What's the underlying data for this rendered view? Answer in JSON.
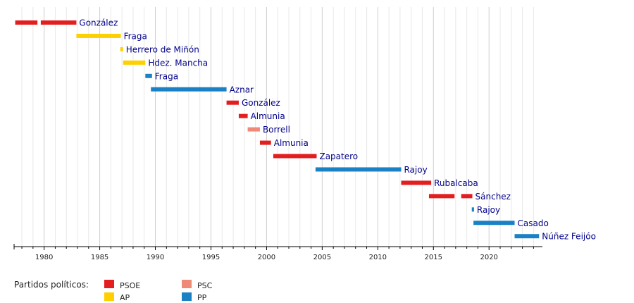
{
  "colors": {
    "PSOE": "#e21e1e",
    "AP": "#ffd000",
    "PSC": "#f08a78",
    "PP": "#1a82c4",
    "label": "#00008b",
    "grid": "#dddddd",
    "axis": "#000000"
  },
  "legend": {
    "title": "Partidos políticos:",
    "items": [
      {
        "party": "PSOE",
        "label": "PSOE"
      },
      {
        "party": "AP",
        "label": "AP"
      },
      {
        "party": "PSC",
        "label": "PSC"
      },
      {
        "party": "PP",
        "label": "PP"
      }
    ]
  },
  "chart_data": {
    "type": "bar",
    "orientation": "horizontal-timeline",
    "xlim": [
      1977.3,
      2024.8
    ],
    "x_ticks": [
      1980,
      1985,
      1990,
      1995,
      2000,
      2005,
      2010,
      2015,
      2020
    ],
    "grid": "vertical, every year",
    "rows": [
      {
        "label": "González",
        "party": "PSOE",
        "spans": [
          [
            1977.4,
            1979.4
          ],
          [
            1979.7,
            1982.9
          ]
        ]
      },
      {
        "label": "Fraga",
        "party": "AP",
        "spans": [
          [
            1982.9,
            1986.9
          ]
        ]
      },
      {
        "label": "Herrero de Miñón",
        "party": "AP",
        "spans": [
          [
            1986.85,
            1987.1
          ]
        ]
      },
      {
        "label": "Hdez. Mancha",
        "party": "AP",
        "spans": [
          [
            1987.1,
            1989.1
          ]
        ]
      },
      {
        "label": "Fraga",
        "party": "PP",
        "spans": [
          [
            1989.1,
            1989.7
          ]
        ]
      },
      {
        "label": "Aznar",
        "party": "PP",
        "spans": [
          [
            1989.6,
            1996.4
          ]
        ]
      },
      {
        "label": "González",
        "party": "PSOE",
        "spans": [
          [
            1996.4,
            1997.5
          ]
        ]
      },
      {
        "label": "Almunia",
        "party": "PSOE",
        "spans": [
          [
            1997.5,
            1998.3
          ]
        ]
      },
      {
        "label": "Borrell",
        "party": "PSC",
        "spans": [
          [
            1998.3,
            1999.4
          ]
        ]
      },
      {
        "label": "Almunia",
        "party": "PSOE",
        "spans": [
          [
            1999.4,
            2000.4
          ]
        ]
      },
      {
        "label": "Zapatero",
        "party": "PSOE",
        "spans": [
          [
            2000.6,
            2004.5
          ]
        ]
      },
      {
        "label": "Rajoy",
        "party": "PP",
        "spans": [
          [
            2004.4,
            2012.1
          ]
        ]
      },
      {
        "label": "Rubalcaba",
        "party": "PSOE",
        "spans": [
          [
            2012.1,
            2014.8
          ]
        ]
      },
      {
        "label": "Sánchez",
        "party": "PSOE",
        "spans": [
          [
            2014.6,
            2016.9
          ],
          [
            2017.5,
            2018.5
          ]
        ]
      },
      {
        "label": "Rajoy",
        "party": "PP",
        "spans": [
          [
            2018.45,
            2018.65
          ]
        ]
      },
      {
        "label": "Casado",
        "party": "PP",
        "spans": [
          [
            2018.6,
            2022.3
          ]
        ]
      },
      {
        "label": "Núñez Feijóo",
        "party": "PP",
        "spans": [
          [
            2022.3,
            2024.5
          ]
        ]
      }
    ]
  }
}
